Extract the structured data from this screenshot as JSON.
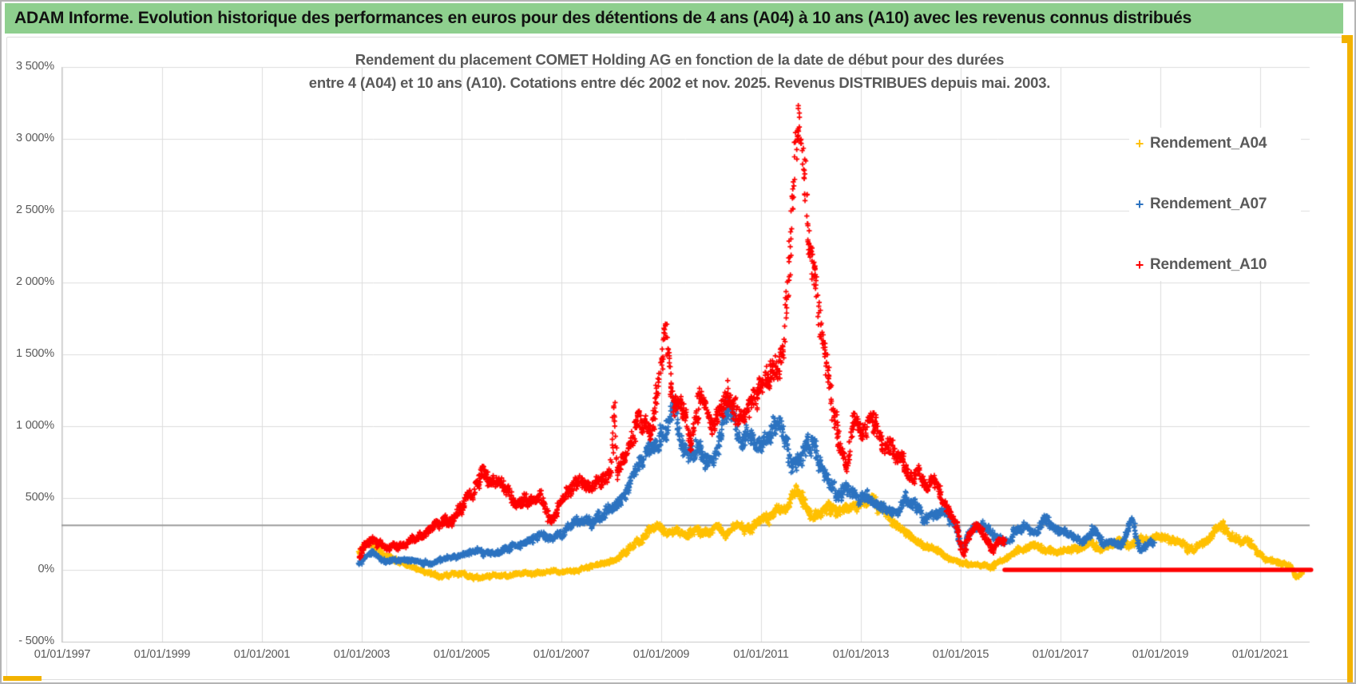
{
  "header": {
    "title": "ADAM Informe. Evolution historique des performances en euros pour des détentions de 4 ans (A04) à 10 ans (A10) avec les revenus connus distribués",
    "bg_color": "#8ecf8e",
    "accent_border_color": "#f2b200"
  },
  "chart": {
    "title_line1": "Rendement du placement COMET Holding AG en fonction de la date de début pour des durées",
    "title_line2": "entre 4 (A04) et 10 ans (A10). Cotations entre déc 2002 et nov. 2025. Revenus DISTRIBUES depuis mai. 2003.",
    "text_color": "#595959",
    "gridline_color": "#dcdcdc"
  },
  "chart_data": {
    "type": "scatter",
    "marker": "+",
    "x_axis": {
      "ticks": [
        {
          "label": "01/01/1997",
          "year": 1997
        },
        {
          "label": "01/01/1999",
          "year": 1999
        },
        {
          "label": "01/01/2001",
          "year": 2001
        },
        {
          "label": "01/01/2003",
          "year": 2003
        },
        {
          "label": "01/01/2005",
          "year": 2005
        },
        {
          "label": "01/01/2007",
          "year": 2007
        },
        {
          "label": "01/01/2009",
          "year": 2009
        },
        {
          "label": "01/01/2011",
          "year": 2011
        },
        {
          "label": "01/01/2013",
          "year": 2013
        },
        {
          "label": "01/01/2015",
          "year": 2015
        },
        {
          "label": "01/01/2017",
          "year": 2017
        },
        {
          "label": "01/01/2019",
          "year": 2019
        },
        {
          "label": "01/01/2021",
          "year": 2021
        }
      ]
    },
    "y_axis": {
      "unit": "%",
      "min": -500,
      "max": 3500,
      "step": 500,
      "ticks": [
        {
          "label": "3 500%",
          "value": 3500
        },
        {
          "label": "3 000%",
          "value": 3000
        },
        {
          "label": "2 500%",
          "value": 2500
        },
        {
          "label": "2 000%",
          "value": 2000
        },
        {
          "label": "1 500%",
          "value": 1500
        },
        {
          "label": "1 000%",
          "value": 1000
        },
        {
          "label": "500%",
          "value": 500
        },
        {
          "label": "0%",
          "value": 0
        },
        {
          "label": "- 500%",
          "value": -500
        }
      ]
    },
    "reference_line": {
      "value_pct": 310,
      "color": "#9c9c9c"
    },
    "flat_line": {
      "series": "Rendement_A10",
      "value_pct": 0,
      "from_year": 2015.88,
      "to_year": 2022.02,
      "color": "#fe0000"
    },
    "series": [
      {
        "name": "Rendement_A04",
        "color": "#ffc000",
        "start_year": 2002.95,
        "end_year": 2021.87,
        "anchors": [
          [
            2002.95,
            120
          ],
          [
            2003.15,
            190
          ],
          [
            2003.3,
            160
          ],
          [
            2003.5,
            90
          ],
          [
            2003.7,
            60
          ],
          [
            2003.9,
            30
          ],
          [
            2004.1,
            10
          ],
          [
            2004.35,
            -20
          ],
          [
            2004.6,
            -45
          ],
          [
            2004.85,
            -30
          ],
          [
            2005.1,
            -40
          ],
          [
            2005.35,
            -50
          ],
          [
            2005.6,
            -40
          ],
          [
            2005.85,
            -45
          ],
          [
            2006.1,
            -20
          ],
          [
            2006.35,
            -30
          ],
          [
            2006.6,
            -25
          ],
          [
            2006.85,
            -10
          ],
          [
            2007.1,
            -15
          ],
          [
            2007.35,
            0
          ],
          [
            2007.6,
            30
          ],
          [
            2007.85,
            50
          ],
          [
            2008.1,
            70
          ],
          [
            2008.35,
            150
          ],
          [
            2008.6,
            220
          ],
          [
            2008.9,
            320
          ],
          [
            2009.1,
            250
          ],
          [
            2009.3,
            280
          ],
          [
            2009.5,
            230
          ],
          [
            2009.7,
            290
          ],
          [
            2009.9,
            260
          ],
          [
            2010.1,
            300
          ],
          [
            2010.3,
            250
          ],
          [
            2010.5,
            300
          ],
          [
            2010.7,
            280
          ],
          [
            2010.9,
            320
          ],
          [
            2011.1,
            350
          ],
          [
            2011.3,
            400
          ],
          [
            2011.5,
            430
          ],
          [
            2011.7,
            540
          ],
          [
            2011.85,
            480
          ],
          [
            2012,
            400
          ],
          [
            2012.2,
            380
          ],
          [
            2012.4,
            420
          ],
          [
            2012.6,
            400
          ],
          [
            2012.8,
            450
          ],
          [
            2013,
            460
          ],
          [
            2013.2,
            500
          ],
          [
            2013.4,
            420
          ],
          [
            2013.6,
            350
          ],
          [
            2013.8,
            300
          ],
          [
            2014,
            240
          ],
          [
            2014.2,
            180
          ],
          [
            2014.4,
            150
          ],
          [
            2014.6,
            120
          ],
          [
            2014.8,
            70
          ],
          [
            2015,
            40
          ],
          [
            2015.2,
            30
          ],
          [
            2015.4,
            25
          ],
          [
            2015.6,
            15
          ],
          [
            2015.8,
            60
          ],
          [
            2016,
            100
          ],
          [
            2016.2,
            140
          ],
          [
            2016.4,
            170
          ],
          [
            2016.6,
            160
          ],
          [
            2016.8,
            130
          ],
          [
            2017,
            120
          ],
          [
            2017.2,
            150
          ],
          [
            2017.4,
            140
          ],
          [
            2017.6,
            200
          ],
          [
            2017.8,
            150
          ],
          [
            2018,
            180
          ],
          [
            2018.2,
            200
          ],
          [
            2018.4,
            170
          ],
          [
            2018.6,
            220
          ],
          [
            2018.8,
            230
          ],
          [
            2019,
            230
          ],
          [
            2019.2,
            210
          ],
          [
            2019.4,
            200
          ],
          [
            2019.6,
            150
          ],
          [
            2019.8,
            170
          ],
          [
            2020,
            220
          ],
          [
            2020.2,
            310
          ],
          [
            2020.35,
            250
          ],
          [
            2020.5,
            240
          ],
          [
            2020.7,
            210
          ],
          [
            2020.9,
            140
          ],
          [
            2021.1,
            90
          ],
          [
            2021.3,
            60
          ],
          [
            2021.45,
            45
          ],
          [
            2021.6,
            30
          ],
          [
            2021.72,
            -40
          ],
          [
            2021.87,
            -25
          ]
        ]
      },
      {
        "name": "Rendement_A07",
        "color": "#2b72c0",
        "start_year": 2002.95,
        "end_year": 2018.87,
        "anchors": [
          [
            2002.95,
            30
          ],
          [
            2003.2,
            120
          ],
          [
            2003.5,
            60
          ],
          [
            2003.8,
            70
          ],
          [
            2004.1,
            60
          ],
          [
            2004.4,
            40
          ],
          [
            2004.7,
            80
          ],
          [
            2005,
            100
          ],
          [
            2005.3,
            140
          ],
          [
            2005.6,
            110
          ],
          [
            2005.9,
            150
          ],
          [
            2006.2,
            180
          ],
          [
            2006.5,
            230
          ],
          [
            2006.8,
            220
          ],
          [
            2007,
            260
          ],
          [
            2007.3,
            330
          ],
          [
            2007.6,
            330
          ],
          [
            2007.9,
            410
          ],
          [
            2008.1,
            450
          ],
          [
            2008.3,
            550
          ],
          [
            2008.5,
            700
          ],
          [
            2008.7,
            800
          ],
          [
            2008.9,
            850
          ],
          [
            2009.05,
            1000
          ],
          [
            2009.25,
            1130
          ],
          [
            2009.4,
            900
          ],
          [
            2009.55,
            780
          ],
          [
            2009.7,
            850
          ],
          [
            2009.85,
            800
          ],
          [
            2010,
            750
          ],
          [
            2010.2,
            950
          ],
          [
            2010.35,
            1100
          ],
          [
            2010.5,
            1000
          ],
          [
            2010.65,
            950
          ],
          [
            2010.8,
            900
          ],
          [
            2011,
            850
          ],
          [
            2011.2,
            980
          ],
          [
            2011.4,
            1020
          ],
          [
            2011.6,
            700
          ],
          [
            2011.8,
            800
          ],
          [
            2011.95,
            900
          ],
          [
            2012.1,
            800
          ],
          [
            2012.3,
            650
          ],
          [
            2012.5,
            500
          ],
          [
            2012.7,
            570
          ],
          [
            2012.9,
            520
          ],
          [
            2013.1,
            510
          ],
          [
            2013.3,
            450
          ],
          [
            2013.5,
            420
          ],
          [
            2013.7,
            400
          ],
          [
            2013.9,
            480
          ],
          [
            2014.1,
            450
          ],
          [
            2014.3,
            330
          ],
          [
            2014.5,
            390
          ],
          [
            2014.7,
            400
          ],
          [
            2014.9,
            280
          ],
          [
            2015.05,
            160
          ],
          [
            2015.25,
            300
          ],
          [
            2015.45,
            320
          ],
          [
            2015.65,
            250
          ],
          [
            2015.85,
            180
          ],
          [
            2016.05,
            250
          ],
          [
            2016.25,
            310
          ],
          [
            2016.45,
            250
          ],
          [
            2016.65,
            350
          ],
          [
            2016.85,
            290
          ],
          [
            2017.05,
            280
          ],
          [
            2017.25,
            220
          ],
          [
            2017.45,
            200
          ],
          [
            2017.65,
            280
          ],
          [
            2017.85,
            180
          ],
          [
            2018.05,
            190
          ],
          [
            2018.25,
            180
          ],
          [
            2018.45,
            360
          ],
          [
            2018.6,
            150
          ],
          [
            2018.75,
            180
          ],
          [
            2018.87,
            200
          ]
        ]
      },
      {
        "name": "Rendement_A10",
        "color": "#fe0000",
        "start_year": 2002.95,
        "end_year": 2015.88,
        "anchors": [
          [
            2002.95,
            90
          ],
          [
            2003.1,
            180
          ],
          [
            2003.25,
            235
          ],
          [
            2003.5,
            160
          ],
          [
            2003.8,
            175
          ],
          [
            2004.1,
            220
          ],
          [
            2004.5,
            300
          ],
          [
            2004.8,
            360
          ],
          [
            2005,
            420
          ],
          [
            2005.4,
            640
          ],
          [
            2005.6,
            600
          ],
          [
            2005.8,
            620
          ],
          [
            2006.1,
            450
          ],
          [
            2006.35,
            480
          ],
          [
            2006.6,
            520
          ],
          [
            2006.8,
            310
          ],
          [
            2007,
            490
          ],
          [
            2007.3,
            620
          ],
          [
            2007.6,
            570
          ],
          [
            2007.9,
            650
          ],
          [
            2008,
            680
          ],
          [
            2008.06,
            1150
          ],
          [
            2008.12,
            700
          ],
          [
            2008.4,
            900
          ],
          [
            2008.6,
            1050
          ],
          [
            2008.8,
            950
          ],
          [
            2008.95,
            1300
          ],
          [
            2009.1,
            1680
          ],
          [
            2009.25,
            1100
          ],
          [
            2009.4,
            1200
          ],
          [
            2009.6,
            900
          ],
          [
            2009.8,
            1250
          ],
          [
            2010,
            1000
          ],
          [
            2010.2,
            1100
          ],
          [
            2010.35,
            1300
          ],
          [
            2010.5,
            1050
          ],
          [
            2010.7,
            1100
          ],
          [
            2010.9,
            1250
          ],
          [
            2011.1,
            1300
          ],
          [
            2011.3,
            1400
          ],
          [
            2011.45,
            1550
          ],
          [
            2011.6,
            2300
          ],
          [
            2011.7,
            3000
          ],
          [
            2011.78,
            3150
          ],
          [
            2011.88,
            2700
          ],
          [
            2011.98,
            2150
          ],
          [
            2012.1,
            2050
          ],
          [
            2012.25,
            1500
          ],
          [
            2012.4,
            1150
          ],
          [
            2012.55,
            900
          ],
          [
            2012.7,
            700
          ],
          [
            2012.85,
            1050
          ],
          [
            2013,
            950
          ],
          [
            2013.2,
            1050
          ],
          [
            2013.4,
            900
          ],
          [
            2013.6,
            820
          ],
          [
            2013.8,
            750
          ],
          [
            2014,
            640
          ],
          [
            2014.15,
            700
          ],
          [
            2014.3,
            560
          ],
          [
            2014.45,
            630
          ],
          [
            2014.6,
            510
          ],
          [
            2014.75,
            430
          ],
          [
            2014.9,
            300
          ],
          [
            2015.05,
            100
          ],
          [
            2015.2,
            260
          ],
          [
            2015.35,
            300
          ],
          [
            2015.5,
            230
          ],
          [
            2015.65,
            150
          ],
          [
            2015.78,
            230
          ],
          [
            2015.88,
            200
          ]
        ]
      }
    ]
  }
}
